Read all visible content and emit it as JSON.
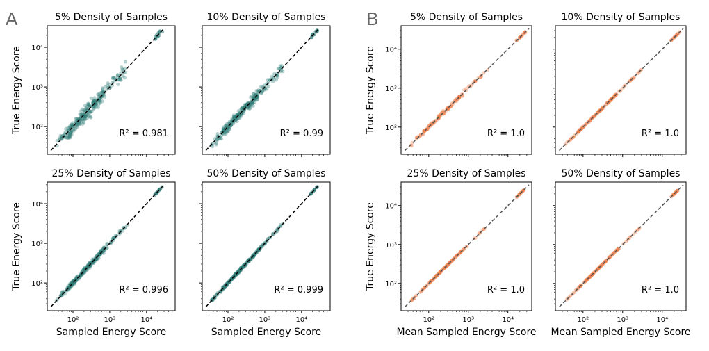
{
  "figure": {
    "panel_labels": [
      "A",
      "B"
    ],
    "colors": {
      "teal": "#2e7a76",
      "orange": "#ee7d4a",
      "frame": "#000000",
      "dashed_black": "#000000",
      "dashed_gray": "#555555"
    }
  },
  "chart_data": [
    {
      "panel": "A",
      "type": "scatter",
      "title": "5% Density of Samples",
      "xlabel": "",
      "ylabel": "True Energy Score",
      "annotation": "R² = 0.981",
      "r2": 0.981,
      "xscale": "log",
      "yscale": "log",
      "xlim": [
        20,
        60000
      ],
      "ylim": [
        20,
        35000
      ],
      "xticks": [],
      "yticks": [
        "10²",
        "10³",
        "10⁴"
      ],
      "spread": 0.17,
      "color": "teal",
      "line": "black"
    },
    {
      "panel": "A",
      "type": "scatter",
      "title": "10% Density of Samples",
      "xlabel": "",
      "ylabel": "",
      "annotation": "R² = 0.99",
      "r2": 0.99,
      "xscale": "log",
      "yscale": "log",
      "xlim": [
        20,
        60000
      ],
      "ylim": [
        20,
        35000
      ],
      "xticks": [],
      "yticks": [],
      "spread": 0.12,
      "color": "teal",
      "line": "black"
    },
    {
      "panel": "A",
      "type": "scatter",
      "title": "25% Density of Samples",
      "xlabel": "Sampled Energy Score",
      "ylabel": "True Energy Score",
      "annotation": "R² = 0.996",
      "r2": 0.996,
      "xscale": "log",
      "yscale": "log",
      "xlim": [
        20,
        60000
      ],
      "ylim": [
        20,
        35000
      ],
      "xticks": [
        "10²",
        "10³",
        "10⁴"
      ],
      "yticks": [
        "10²",
        "10³",
        "10⁴"
      ],
      "spread": 0.06,
      "color": "teal",
      "line": "black"
    },
    {
      "panel": "A",
      "type": "scatter",
      "title": "50% Density of Samples",
      "xlabel": "Sampled Energy Score",
      "ylabel": "",
      "annotation": "R² = 0.999",
      "r2": 0.999,
      "xscale": "log",
      "yscale": "log",
      "xlim": [
        20,
        60000
      ],
      "ylim": [
        20,
        35000
      ],
      "xticks": [
        "10²",
        "10³",
        "10⁴"
      ],
      "yticks": [],
      "spread": 0.03,
      "color": "teal",
      "line": "black"
    },
    {
      "panel": "B",
      "type": "scatter",
      "title": "5% Density of Samples",
      "xlabel": "",
      "ylabel": "True Energy Score",
      "annotation": "R² = 1.0",
      "r2": 1.0,
      "xscale": "log",
      "yscale": "log",
      "xlim": [
        20,
        40000
      ],
      "ylim": [
        20,
        40000
      ],
      "xticks": [],
      "yticks": [
        "10²",
        "10³",
        "10⁴"
      ],
      "spread": 0.04,
      "color": "orange",
      "line": "gray"
    },
    {
      "panel": "B",
      "type": "scatter",
      "title": "10% Density of Samples",
      "xlabel": "",
      "ylabel": "",
      "annotation": "R² = 1.0",
      "r2": 1.0,
      "xscale": "log",
      "yscale": "log",
      "xlim": [
        20,
        40000
      ],
      "ylim": [
        20,
        40000
      ],
      "xticks": [],
      "yticks": [],
      "spread": 0.02,
      "color": "orange",
      "line": "gray"
    },
    {
      "panel": "B",
      "type": "scatter",
      "title": "25% Density of Samples",
      "xlabel": "Mean Sampled Energy Score",
      "ylabel": "True Energy Score",
      "annotation": "R² = 1.0",
      "r2": 1.0,
      "xscale": "log",
      "yscale": "log",
      "xlim": [
        20,
        40000
      ],
      "ylim": [
        20,
        40000
      ],
      "xticks": [
        "10²",
        "10³",
        "10⁴"
      ],
      "yticks": [
        "10²",
        "10³",
        "10⁴"
      ],
      "spread": 0.015,
      "color": "orange",
      "line": "gray"
    },
    {
      "panel": "B",
      "type": "scatter",
      "title": "50% Density of Samples",
      "xlabel": "Mean Sampled Energy Score",
      "ylabel": "",
      "annotation": "R² = 1.0",
      "r2": 1.0,
      "xscale": "log",
      "yscale": "log",
      "xlim": [
        20,
        40000
      ],
      "ylim": [
        20,
        40000
      ],
      "xticks": [
        "10²",
        "10³",
        "10⁴"
      ],
      "yticks": [],
      "spread": 0.01,
      "color": "orange",
      "line": "gray"
    }
  ]
}
